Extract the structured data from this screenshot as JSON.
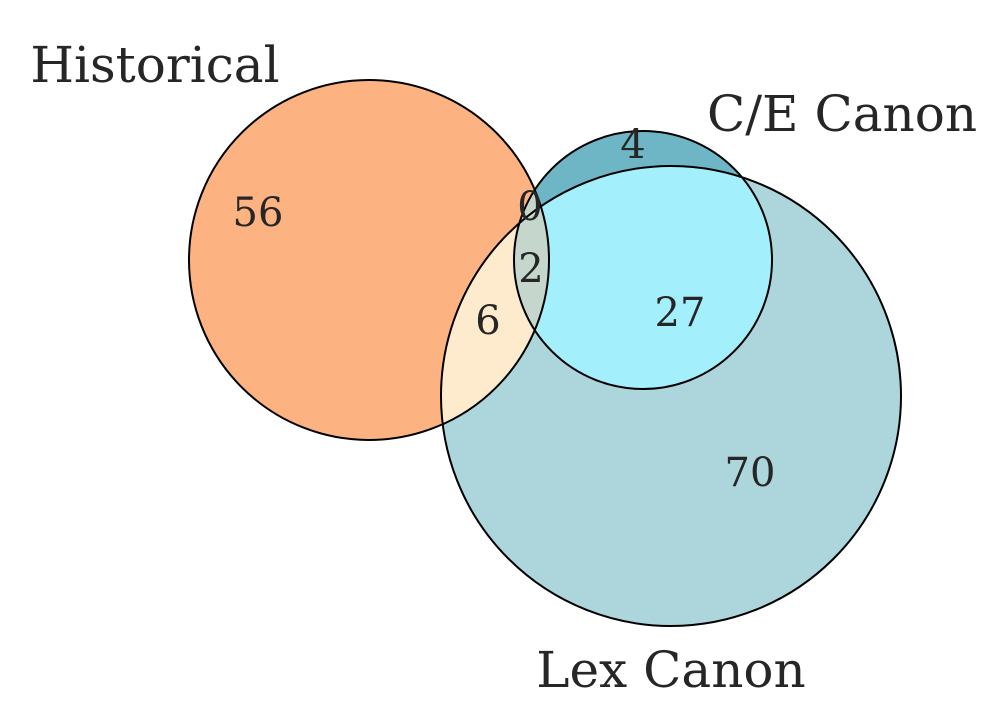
{
  "diagram": {
    "type": "venn3",
    "sets": {
      "historical": {
        "label": "Historical",
        "color": "#fdb381"
      },
      "ce_canon": {
        "label": "C/E Canon",
        "color": "#6eb6c6"
      },
      "lex_canon": {
        "label": "Lex Canon",
        "color": "#acd5dc"
      }
    },
    "regions": {
      "historical_only": "56",
      "ce_canon_only": "4",
      "lex_canon_only": "70",
      "historical_and_ce_canon_only": "0",
      "historical_and_lex_canon_only": "6",
      "ce_canon_and_lex_canon_only": "27",
      "all_three": "2"
    },
    "region_colors": {
      "historical_and_lex_canon": "#feebce",
      "ce_canon_and_lex_canon": "#a3effc",
      "all_three": "#c5d7cc"
    }
  }
}
